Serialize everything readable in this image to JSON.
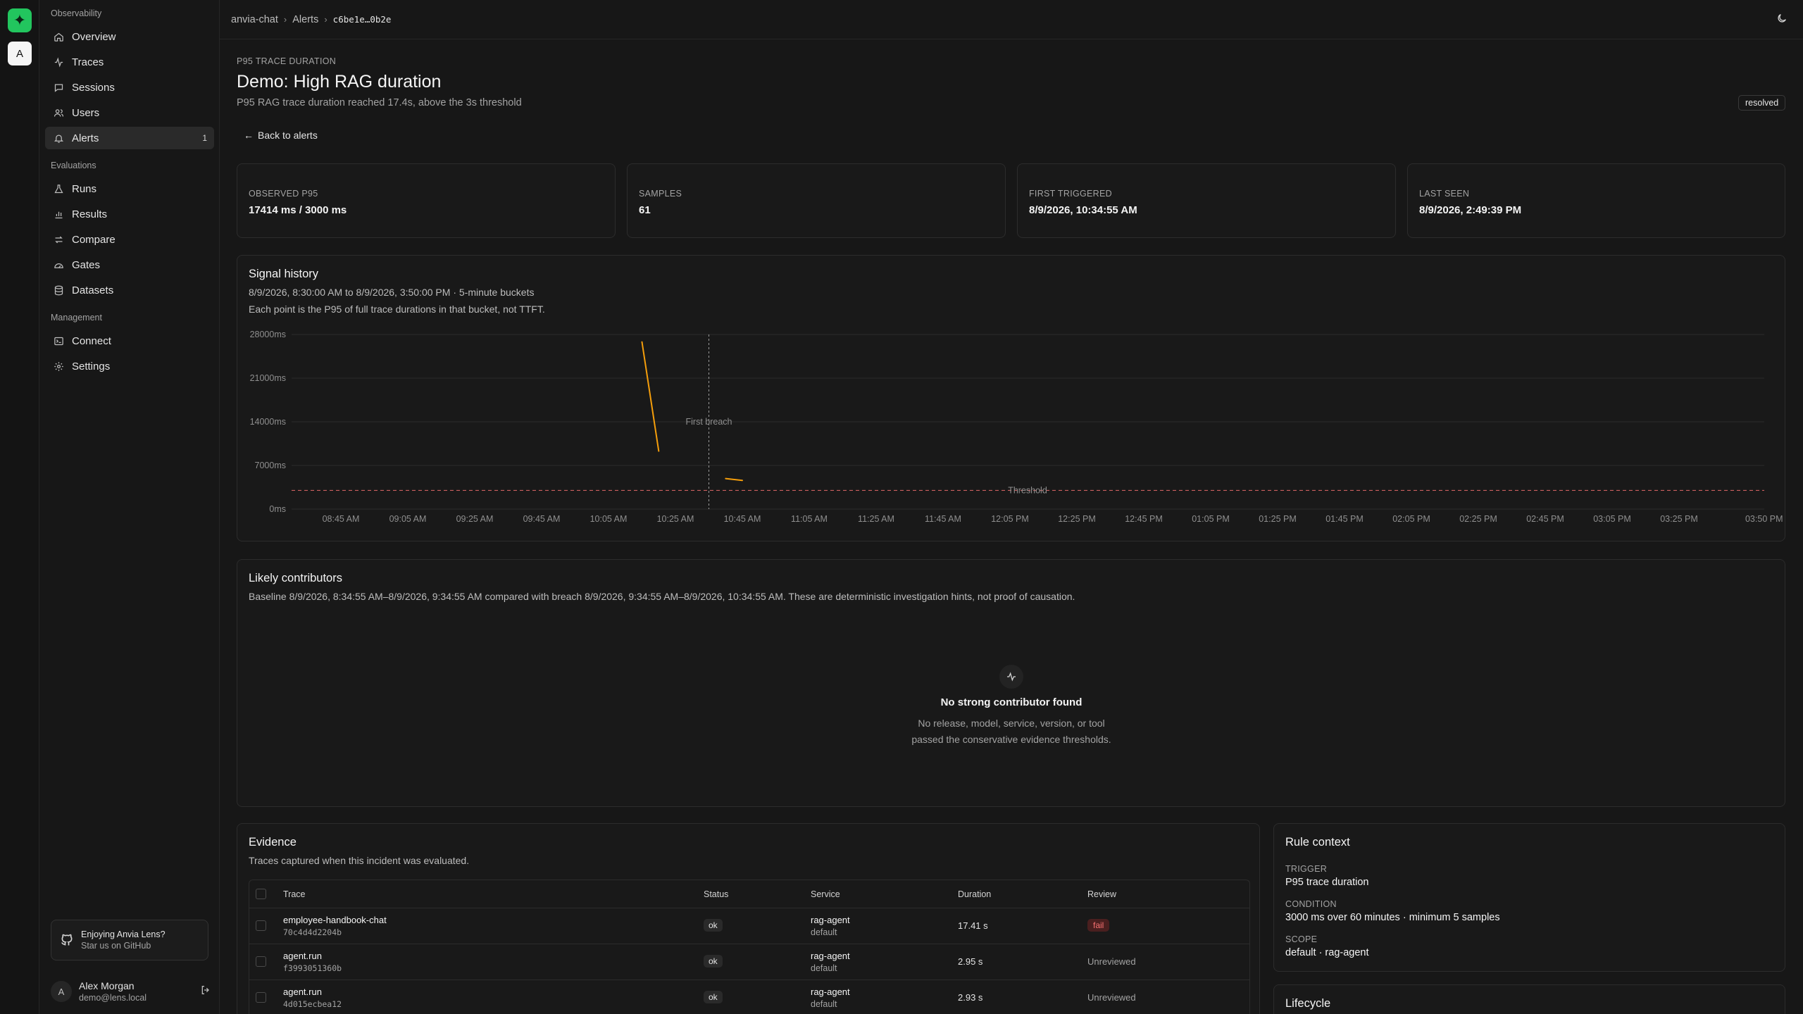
{
  "rail": {
    "logo_icon": "sparkle-icon",
    "avatar_letter": "A"
  },
  "sidebar": {
    "groups": {
      "observability": "Observability",
      "evaluations": "Evaluations",
      "management": "Management"
    },
    "items": [
      {
        "label": "Overview",
        "icon": "home-icon"
      },
      {
        "label": "Traces",
        "icon": "activity-icon"
      },
      {
        "label": "Sessions",
        "icon": "chat-icon"
      },
      {
        "label": "Users",
        "icon": "users-icon"
      },
      {
        "label": "Alerts",
        "icon": "bell-icon",
        "badge": "1",
        "active": true
      },
      {
        "label": "Runs",
        "icon": "flask-icon"
      },
      {
        "label": "Results",
        "icon": "bar-chart-icon"
      },
      {
        "label": "Compare",
        "icon": "compare-icon"
      },
      {
        "label": "Gates",
        "icon": "gauge-icon"
      },
      {
        "label": "Datasets",
        "icon": "database-icon"
      },
      {
        "label": "Connect",
        "icon": "terminal-icon"
      },
      {
        "label": "Settings",
        "icon": "gear-icon"
      }
    ],
    "promo": {
      "title": "Enjoying Anvia Lens?",
      "subtitle": "Star us on GitHub"
    },
    "user": {
      "initial": "A",
      "name": "Alex Morgan",
      "email": "demo@lens.local"
    }
  },
  "breadcrumb": {
    "project": "anvia-chat",
    "section": "Alerts",
    "id": "c6be1e…0b2e"
  },
  "header": {
    "eyebrow": "P95 TRACE DURATION",
    "title": "Demo: High RAG duration",
    "subtitle": "P95 RAG trace duration reached 17.4s, above the 3s threshold",
    "status": "resolved",
    "back_label": "Back to alerts"
  },
  "stats": [
    {
      "label": "OBSERVED P95",
      "value": "17414 ms / 3000 ms"
    },
    {
      "label": "SAMPLES",
      "value": "61"
    },
    {
      "label": "FIRST TRIGGERED",
      "value": "8/9/2026, 10:34:55 AM"
    },
    {
      "label": "LAST SEEN",
      "value": "8/9/2026, 2:49:39 PM"
    }
  ],
  "signal": {
    "title": "Signal history",
    "range": "8/9/2026, 8:30:00 AM to 8/9/2026, 3:50:00 PM · 5-minute buckets",
    "note": "Each point is the P95 of full trace durations in that bucket, not TTFT."
  },
  "chart_data": {
    "type": "line",
    "y_ticks": [
      "28000ms",
      "21000ms",
      "14000ms",
      "7000ms",
      "0ms"
    ],
    "ylim": [
      0,
      28000
    ],
    "x_ticks": [
      "08:45 AM",
      "09:05 AM",
      "09:25 AM",
      "09:45 AM",
      "10:05 AM",
      "10:25 AM",
      "10:45 AM",
      "11:05 AM",
      "11:25 AM",
      "11:45 AM",
      "12:05 PM",
      "12:25 PM",
      "12:45 PM",
      "01:05 PM",
      "01:25 PM",
      "01:45 PM",
      "02:05 PM",
      "02:25 PM",
      "02:45 PM",
      "03:05 PM",
      "03:25 PM",
      "03:50 PM"
    ],
    "series": [
      {
        "segments": [
          [
            {
              "x": "10:15 AM",
              "y": 26800
            },
            {
              "x": "10:20 AM",
              "y": 9300
            }
          ],
          [
            {
              "x": "10:40 AM",
              "y": 4900
            },
            {
              "x": "10:45 AM",
              "y": 4600
            }
          ]
        ]
      }
    ],
    "threshold": {
      "value": 3000,
      "label": "Threshold"
    },
    "first_breach": {
      "x": "10:35 AM",
      "label": "First breach"
    },
    "colors": {
      "line": "#f59e0b",
      "threshold": "#f87171",
      "grid": "#2a2a2a"
    }
  },
  "contributors": {
    "title": "Likely contributors",
    "description": "Baseline 8/9/2026, 8:34:55 AM–8/9/2026, 9:34:55 AM compared with breach 8/9/2026, 9:34:55 AM–8/9/2026, 10:34:55 AM. These are deterministic investigation hints, not proof of causation.",
    "empty_title": "No strong contributor found",
    "empty_line1": "No release, model, service, version, or tool",
    "empty_line2": "passed the conservative evidence thresholds."
  },
  "evidence": {
    "title": "Evidence",
    "subtitle": "Traces captured when this incident was evaluated.",
    "columns": [
      "Trace",
      "Status",
      "Service",
      "Duration",
      "Review"
    ],
    "rows": [
      {
        "name": "employee-handbook-chat",
        "id": "70c4d4d2204b",
        "status": "ok",
        "service": "rag-agent",
        "env": "default",
        "duration": "17.41 s",
        "review": "fail"
      },
      {
        "name": "agent.run",
        "id": "f3993051360b",
        "status": "ok",
        "service": "rag-agent",
        "env": "default",
        "duration": "2.95 s",
        "review": "Unreviewed"
      },
      {
        "name": "agent.run",
        "id": "4d015ecbea12",
        "status": "ok",
        "service": "rag-agent",
        "env": "default",
        "duration": "2.93 s",
        "review": "Unreviewed"
      }
    ]
  },
  "rule": {
    "title": "Rule context",
    "trigger_label": "TRIGGER",
    "trigger": "P95 trace duration",
    "condition_label": "CONDITION",
    "condition": "3000 ms over 60 minutes · minimum 5 samples",
    "scope_label": "SCOPE",
    "scope": "default · rag-agent"
  },
  "lifecycle": {
    "title": "Lifecycle"
  }
}
